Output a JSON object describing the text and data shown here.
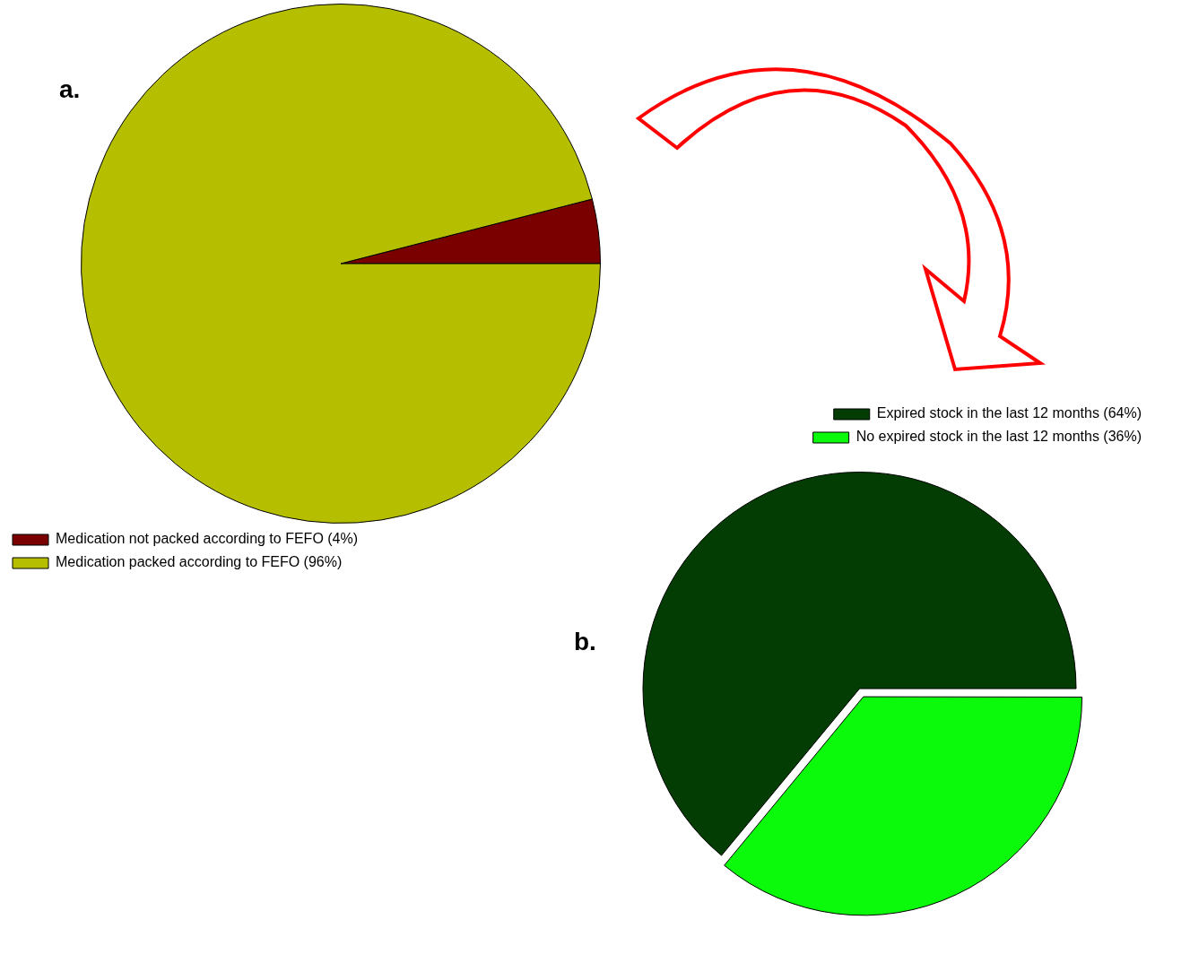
{
  "chart_data": [
    {
      "type": "pie",
      "title": "a.",
      "categories": [
        "Medication not packed according to FEFO (4%)",
        "Medication packed according to FEFO (96%)"
      ],
      "values": [
        4,
        96
      ],
      "colors": [
        "#7a0000",
        "#b5bf00"
      ],
      "legend": "bottom left"
    },
    {
      "type": "pie",
      "title": "b.",
      "categories": [
        "Expired stock in the last 12 months (64%)",
        "No expired stock in the last 12 months (36%)"
      ],
      "values": [
        64,
        36
      ],
      "colors": [
        "#033d03",
        "#0bf90b"
      ],
      "legend": "top right"
    }
  ]
}
